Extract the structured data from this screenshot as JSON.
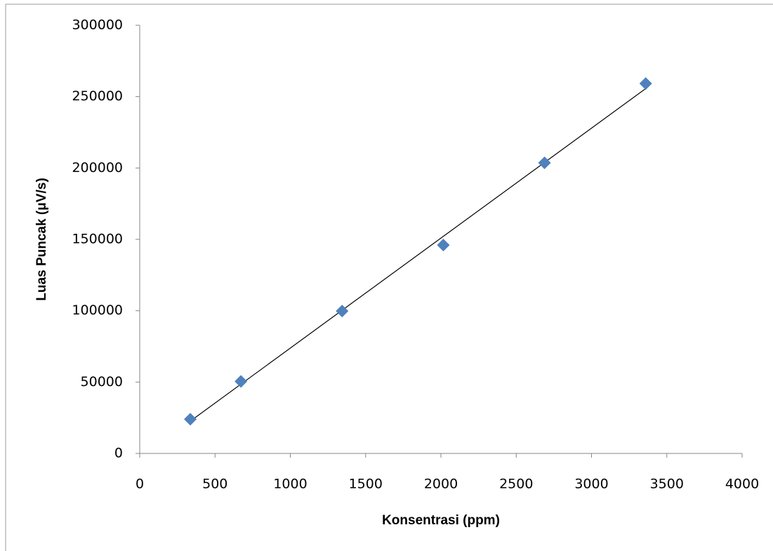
{
  "chart_data": {
    "type": "scatter",
    "x_label": "Konsentrasi (ppm)",
    "y_label": "Luas Puncak (μV/s)",
    "series": [
      {
        "color": "#4f81bd",
        "x": [
          336,
          672,
          1344,
          2016,
          2688,
          3360
        ],
        "values": [
          24000,
          50500,
          99800,
          146000,
          203600,
          259200
        ]
      }
    ],
    "trendline": "linear",
    "xlim": [
      0,
      4000
    ],
    "xticks": [
      0,
      500,
      1000,
      1500,
      2000,
      2500,
      3000,
      3500,
      4000
    ],
    "ylim": [
      0,
      300000
    ],
    "yticks": [
      0,
      50000,
      100000,
      150000,
      200000,
      250000,
      300000
    ],
    "grid": false
  }
}
